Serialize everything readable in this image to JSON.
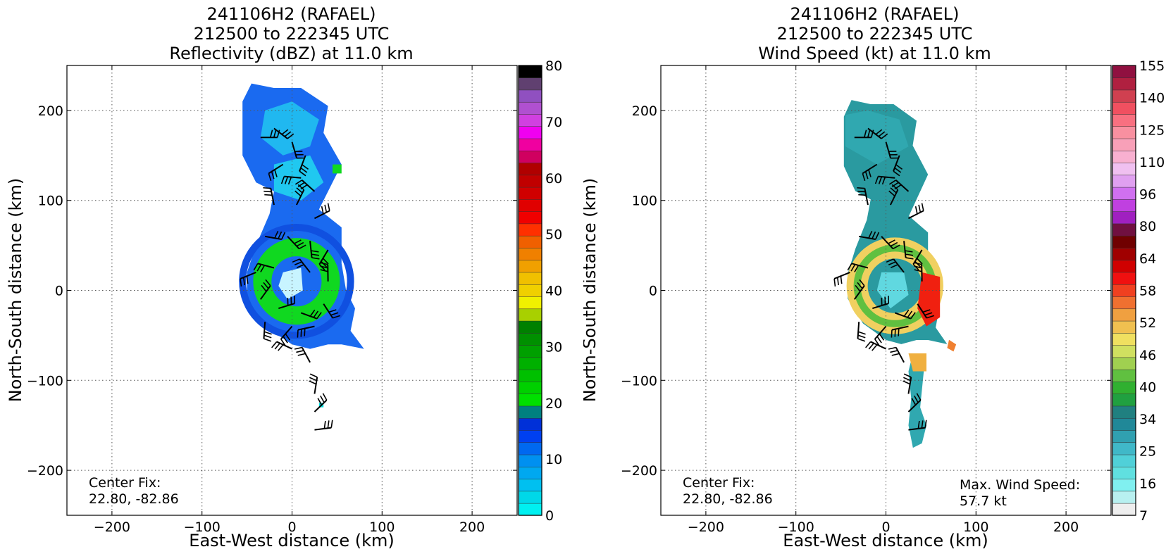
{
  "panels": [
    {
      "title": [
        "241106H2 (RAFAEL)",
        "212500 to 222345 UTC",
        "Reflectivity (dBZ) at 11.0 km"
      ],
      "center_fix_label": "Center Fix:",
      "center_fix_value": "22.80, -82.86",
      "max_label": "",
      "max_value": "",
      "colorbar_labels": [
        "80",
        "70",
        "60",
        "50",
        "40",
        "30",
        "20",
        "10",
        "0"
      ]
    },
    {
      "title": [
        "241106H2 (RAFAEL)",
        "212500 to 222345 UTC",
        "Wind Speed (kt) at 11.0 km"
      ],
      "center_fix_label": "Center Fix:",
      "center_fix_value": "22.80, -82.86",
      "max_label": "Max. Wind Speed:",
      "max_value": "57.7 kt",
      "colorbar_labels": [
        "155",
        "140",
        "125",
        "110",
        "96",
        "80",
        "64",
        "58",
        "52",
        "46",
        "40",
        "34",
        "25",
        "16",
        "7"
      ]
    }
  ],
  "chart_data": [
    {
      "type": "heatmap",
      "title": "241106H2 (RAFAEL) 212500 to 222345 UTC Reflectivity (dBZ) at 11.0 km",
      "xlabel": "East-West distance (km)",
      "ylabel": "North-South distance (km)",
      "xlim": [
        -250,
        250
      ],
      "ylim": [
        -250,
        250
      ],
      "xticks": [
        "−200",
        "−100",
        "0",
        "100",
        "200"
      ],
      "yticks": [
        "200",
        "100",
        "0",
        "−100",
        "−200"
      ],
      "grid": true,
      "colorbar": {
        "min": 0,
        "max": 80,
        "ticks": [
          "80",
          "70",
          "60",
          "50",
          "40",
          "30",
          "20",
          "10",
          "0"
        ],
        "colors": [
          "#00f0f0",
          "#00d8e8",
          "#00c0f0",
          "#00a8f0",
          "#0090f0",
          "#0068f0",
          "#0040f0",
          "#0030d8",
          "#008080",
          "#00e000",
          "#00d000",
          "#00c000",
          "#00b000",
          "#00a000",
          "#009000",
          "#008000",
          "#a8d000",
          "#f0f000",
          "#f0d000",
          "#f0c000",
          "#f0a000",
          "#f08000",
          "#f06000",
          "#ff3000",
          "#f00000",
          "#e00000",
          "#d00000",
          "#c00000",
          "#b00000",
          "#d00060",
          "#f000a0",
          "#f000f0",
          "#d040e0",
          "#b050d0",
          "#9050c0",
          "#604070",
          "#000000"
        ]
      },
      "center_fix": "22.80, -82.86"
    },
    {
      "type": "heatmap",
      "title": "241106H2 (RAFAEL) 212500 to 222345 UTC Wind Speed (kt) at 11.0 km",
      "xlabel": "East-West distance (km)",
      "ylabel": "North-South distance (km)",
      "xlim": [
        -250,
        250
      ],
      "ylim": [
        -250,
        250
      ],
      "xticks": [
        "−200",
        "−100",
        "0",
        "100",
        "200"
      ],
      "yticks": [
        "200",
        "100",
        "0",
        "−100",
        "−200"
      ],
      "grid": true,
      "colorbar": {
        "ticks": [
          "155",
          "140",
          "125",
          "110",
          "96",
          "80",
          "64",
          "58",
          "52",
          "46",
          "40",
          "34",
          "25",
          "16",
          "7"
        ],
        "colors": [
          "#eeeeee",
          "#b8f0f0",
          "#80f0f0",
          "#60e0e0",
          "#50d0d8",
          "#40b8c8",
          "#30a0b0",
          "#208898",
          "#208080",
          "#20a040",
          "#30b030",
          "#60c040",
          "#a0d050",
          "#d0e060",
          "#f0e060",
          "#f0c050",
          "#f0a040",
          "#f07030",
          "#f04020",
          "#f01010",
          "#d00000",
          "#a00000",
          "#700000",
          "#701040",
          "#a020c0",
          "#c040e0",
          "#d070f0",
          "#e0a0f0",
          "#f0c0f0",
          "#f8b0d0",
          "#f8a0b8",
          "#f890a0",
          "#f87080",
          "#f05060",
          "#d04050",
          "#b02040",
          "#901040"
        ]
      },
      "center_fix": "22.80, -82.86",
      "max_wind_speed": "57.7 kt"
    }
  ]
}
